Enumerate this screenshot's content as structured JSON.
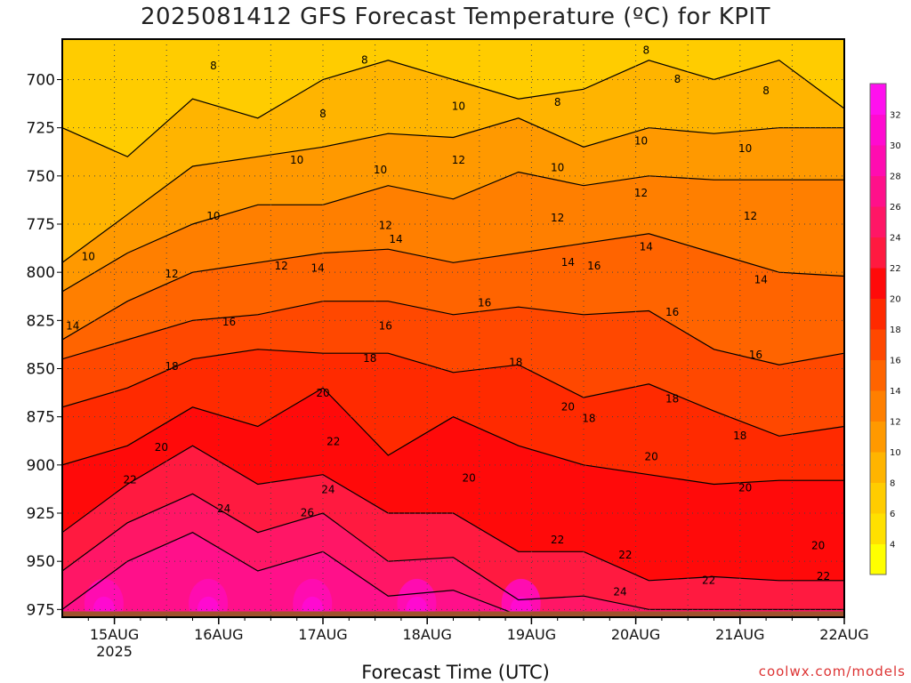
{
  "title": "2025081412 GFS Forecast Temperature (ºC) for KPIT",
  "credit": "coolwx.com/models",
  "chart_data": {
    "type": "heatmap",
    "title": "2025081412 GFS Forecast Temperature (ºC) for KPIT",
    "xlabel": "Forecast Time (UTC)",
    "ylabel": "",
    "x_ticks": [
      {
        "label": "15AUG",
        "sublabel": "2025",
        "day": 1
      },
      {
        "label": "16AUG",
        "sublabel": "",
        "day": 2
      },
      {
        "label": "17AUG",
        "sublabel": "",
        "day": 3
      },
      {
        "label": "18AUG",
        "sublabel": "",
        "day": 4
      },
      {
        "label": "19AUG",
        "sublabel": "",
        "day": 5
      },
      {
        "label": "20AUG",
        "sublabel": "",
        "day": 6
      },
      {
        "label": "21AUG",
        "sublabel": "",
        "day": 7
      },
      {
        "label": "22AUG",
        "sublabel": "",
        "day": 8
      }
    ],
    "xlim_days": [
      0.5,
      8.0
    ],
    "y_ticks": [
      700,
      725,
      750,
      775,
      800,
      825,
      850,
      875,
      900,
      925,
      950,
      975
    ],
    "ylim": [
      679,
      979
    ],
    "y_inverted": true,
    "colorbar": {
      "ticks": [
        4,
        6,
        8,
        10,
        12,
        14,
        16,
        18,
        20,
        22,
        24,
        26,
        28,
        30,
        32
      ],
      "range": [
        2,
        34
      ],
      "colors": [
        "#ffff00",
        "#ffe000",
        "#ffcc00",
        "#ffb400",
        "#ff9900",
        "#ff7f00",
        "#ff6400",
        "#ff4800",
        "#ff2a00",
        "#ff0a0a",
        "#ff1a40",
        "#ff1666",
        "#ff108a",
        "#ff0cb0",
        "#ff0ad0",
        "#ff10ee"
      ]
    },
    "series": [
      {
        "level_c": 8,
        "pressure": [
          725,
          740,
          710,
          720,
          700,
          690,
          700,
          710,
          705,
          690,
          700,
          690,
          715
        ]
      },
      {
        "level_c": 10,
        "pressure": [
          795,
          770,
          745,
          740,
          735,
          728,
          730,
          720,
          735,
          725,
          728,
          725,
          725
        ]
      },
      {
        "level_c": 12,
        "pressure": [
          810,
          790,
          775,
          765,
          765,
          755,
          762,
          748,
          755,
          750,
          752,
          752,
          752
        ]
      },
      {
        "level_c": 14,
        "pressure": [
          835,
          815,
          800,
          795,
          790,
          788,
          795,
          790,
          785,
          780,
          790,
          800,
          802
        ]
      },
      {
        "level_c": 16,
        "pressure": [
          845,
          835,
          825,
          822,
          815,
          815,
          822,
          818,
          822,
          820,
          840,
          848,
          842
        ]
      },
      {
        "level_c": 18,
        "pressure": [
          870,
          860,
          845,
          840,
          842,
          842,
          852,
          848,
          865,
          858,
          872,
          885,
          880
        ]
      },
      {
        "level_c": 20,
        "pressure": [
          900,
          890,
          870,
          880,
          860,
          895,
          875,
          890,
          900,
          905,
          910,
          908,
          908
        ]
      },
      {
        "level_c": 22,
        "pressure": [
          935,
          910,
          890,
          910,
          905,
          925,
          925,
          945,
          945,
          960,
          958,
          960,
          960
        ]
      },
      {
        "level_c": 24,
        "pressure": [
          955,
          930,
          915,
          935,
          925,
          950,
          948,
          970,
          968,
          975,
          975,
          975,
          975
        ]
      },
      {
        "level_c": 26,
        "pressure": [
          975,
          950,
          935,
          955,
          945,
          968,
          965,
          978,
          978,
          979,
          979,
          979,
          979
        ]
      }
    ],
    "series_x_days": [
      0.5,
      1.125,
      1.75,
      2.375,
      3.0,
      3.625,
      4.25,
      4.875,
      5.5,
      6.125,
      6.75,
      7.375,
      8.0
    ],
    "contour_labels": [
      {
        "text": "8",
        "day": 1.95,
        "p": 693
      },
      {
        "text": "8",
        "day": 3.0,
        "p": 718
      },
      {
        "text": "8",
        "day": 3.4,
        "p": 690
      },
      {
        "text": "8",
        "day": 6.1,
        "p": 685
      },
      {
        "text": "8",
        "day": 6.4,
        "p": 700
      },
      {
        "text": "8",
        "day": 5.25,
        "p": 712
      },
      {
        "text": "8",
        "day": 7.25,
        "p": 706
      },
      {
        "text": "10",
        "day": 0.75,
        "p": 792
      },
      {
        "text": "10",
        "day": 1.95,
        "p": 771
      },
      {
        "text": "10",
        "day": 2.75,
        "p": 742
      },
      {
        "text": "10",
        "day": 3.55,
        "p": 747
      },
      {
        "text": "10",
        "day": 4.3,
        "p": 714
      },
      {
        "text": "10",
        "day": 5.25,
        "p": 746
      },
      {
        "text": "10",
        "day": 6.05,
        "p": 732
      },
      {
        "text": "10",
        "day": 7.05,
        "p": 736
      },
      {
        "text": "12",
        "day": 1.55,
        "p": 801
      },
      {
        "text": "12",
        "day": 2.6,
        "p": 797
      },
      {
        "text": "12",
        "day": 3.6,
        "p": 776
      },
      {
        "text": "12",
        "day": 4.3,
        "p": 742
      },
      {
        "text": "12",
        "day": 5.25,
        "p": 772
      },
      {
        "text": "12",
        "day": 6.05,
        "p": 759
      },
      {
        "text": "12",
        "day": 7.1,
        "p": 771
      },
      {
        "text": "14",
        "day": 0.6,
        "p": 828
      },
      {
        "text": "14",
        "day": 2.95,
        "p": 798
      },
      {
        "text": "14",
        "day": 3.7,
        "p": 783
      },
      {
        "text": "14",
        "day": 5.35,
        "p": 795
      },
      {
        "text": "14",
        "day": 6.1,
        "p": 787
      },
      {
        "text": "14",
        "day": 7.2,
        "p": 804
      },
      {
        "text": "16",
        "day": 2.1,
        "p": 826
      },
      {
        "text": "16",
        "day": 3.6,
        "p": 828
      },
      {
        "text": "16",
        "day": 4.55,
        "p": 816
      },
      {
        "text": "16",
        "day": 5.6,
        "p": 797
      },
      {
        "text": "16",
        "day": 6.35,
        "p": 821
      },
      {
        "text": "16",
        "day": 7.15,
        "p": 843
      },
      {
        "text": "18",
        "day": 1.55,
        "p": 849
      },
      {
        "text": "18",
        "day": 3.45,
        "p": 845
      },
      {
        "text": "18",
        "day": 4.85,
        "p": 847
      },
      {
        "text": "18",
        "day": 5.55,
        "p": 876
      },
      {
        "text": "18",
        "day": 6.35,
        "p": 866
      },
      {
        "text": "18",
        "day": 7.0,
        "p": 885
      },
      {
        "text": "20",
        "day": 1.45,
        "p": 891
      },
      {
        "text": "20",
        "day": 3.0,
        "p": 863
      },
      {
        "text": "20",
        "day": 4.4,
        "p": 907
      },
      {
        "text": "20",
        "day": 5.35,
        "p": 870
      },
      {
        "text": "20",
        "day": 6.15,
        "p": 896
      },
      {
        "text": "20",
        "day": 7.05,
        "p": 912
      },
      {
        "text": "20",
        "day": 7.75,
        "p": 942
      },
      {
        "text": "22",
        "day": 1.15,
        "p": 908
      },
      {
        "text": "22",
        "day": 3.1,
        "p": 888
      },
      {
        "text": "22",
        "day": 5.25,
        "p": 939
      },
      {
        "text": "22",
        "day": 5.9,
        "p": 947
      },
      {
        "text": "22",
        "day": 6.7,
        "p": 960
      },
      {
        "text": "22",
        "day": 7.8,
        "p": 958
      },
      {
        "text": "24",
        "day": 2.05,
        "p": 923
      },
      {
        "text": "24",
        "day": 3.05,
        "p": 913
      },
      {
        "text": "24",
        "day": 5.85,
        "p": 966
      },
      {
        "text": "26",
        "day": 2.85,
        "p": 925
      }
    ]
  }
}
